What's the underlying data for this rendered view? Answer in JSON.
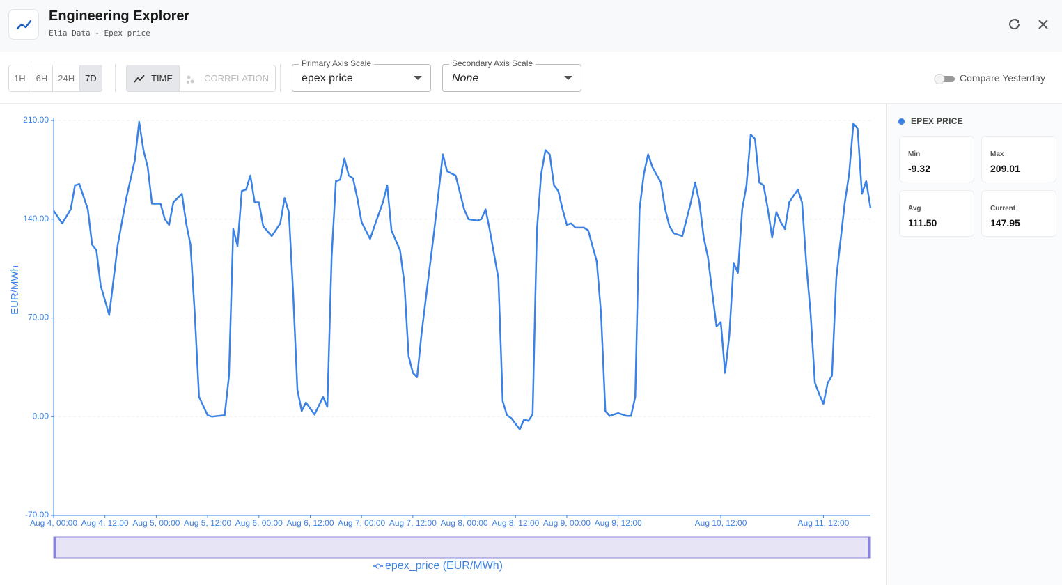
{
  "header": {
    "title": "Engineering Explorer",
    "subtitle": "Elia Data - Epex price"
  },
  "toolbar": {
    "ranges": [
      "1H",
      "6H",
      "24H",
      "7D"
    ],
    "active_range": "7D",
    "modes": [
      "TIME",
      "CORRELATION"
    ],
    "active_mode": "TIME",
    "primary_label": "Primary Axis Scale",
    "primary_value": "epex price",
    "secondary_label": "Secondary Axis Scale",
    "secondary_value": "None",
    "compare": "Compare Yesterday"
  },
  "stats": {
    "title": "EPEX PRICE",
    "items": [
      {
        "label": "Min",
        "value": "-9.32"
      },
      {
        "label": "Max",
        "value": "209.01"
      },
      {
        "label": "Avg",
        "value": "111.50"
      },
      {
        "label": "Current",
        "value": "147.95"
      }
    ]
  },
  "chart_data": {
    "type": "line",
    "ylabel": "EUR/MWh",
    "xlim": [
      "Aug 4, 00:00",
      "Aug 11, 23:00"
    ],
    "xticks": [
      "Aug 4, 00:00",
      "Aug 4, 12:00",
      "Aug 5, 00:00",
      "Aug 5, 12:00",
      "Aug 6, 00:00",
      "Aug 6, 12:00",
      "Aug 7, 00:00",
      "Aug 7, 12:00",
      "Aug 8, 00:00",
      "Aug 8, 12:00",
      "Aug 9, 00:00",
      "Aug 9, 12:00",
      "Aug 10, 12:00",
      "Aug 11, 12:00"
    ],
    "ylim": [
      -70,
      210
    ],
    "yticks": [
      {
        "value": -70,
        "label": "-70.00"
      },
      {
        "value": 0,
        "label": "0.00"
      },
      {
        "value": 70,
        "label": "70.00"
      },
      {
        "value": 140,
        "label": "140.00"
      },
      {
        "value": 210,
        "label": "210.00"
      }
    ],
    "grid": true,
    "x": [
      "Aug 4, 00:00",
      "Aug 4, 02:00",
      "Aug 4, 04:00",
      "Aug 4, 05:00",
      "Aug 4, 06:00",
      "Aug 4, 08:00",
      "Aug 4, 09:00",
      "Aug 4, 10:00",
      "Aug 4, 11:00",
      "Aug 4, 13:00",
      "Aug 4, 15:00",
      "Aug 4, 17:00",
      "Aug 4, 19:00",
      "Aug 4, 20:00",
      "Aug 4, 21:00",
      "Aug 4, 22:00",
      "Aug 4, 23:00",
      "Aug 5, 01:00",
      "Aug 5, 02:00",
      "Aug 5, 03:00",
      "Aug 5, 04:00",
      "Aug 5, 06:00",
      "Aug 5, 07:00",
      "Aug 5, 08:00",
      "Aug 5, 09:00",
      "Aug 5, 10:00",
      "Aug 5, 12:00",
      "Aug 5, 13:00",
      "Aug 5, 16:00",
      "Aug 5, 17:00",
      "Aug 5, 18:00",
      "Aug 5, 19:00",
      "Aug 5, 20:00",
      "Aug 5, 21:00",
      "Aug 5, 22:00",
      "Aug 5, 23:00",
      "Aug 6, 00:00",
      "Aug 6, 01:00",
      "Aug 6, 03:00",
      "Aug 6, 05:00",
      "Aug 6, 06:00",
      "Aug 6, 07:00",
      "Aug 6, 08:00",
      "Aug 6, 09:00",
      "Aug 6, 10:00",
      "Aug 6, 11:00",
      "Aug 6, 13:00",
      "Aug 6, 15:00",
      "Aug 6, 16:00",
      "Aug 6, 17:00",
      "Aug 6, 18:00",
      "Aug 6, 19:00",
      "Aug 6, 20:00",
      "Aug 6, 21:00",
      "Aug 6, 22:00",
      "Aug 6, 23:00",
      "Aug 7, 00:00",
      "Aug 7, 02:00",
      "Aug 7, 03:00",
      "Aug 7, 05:00",
      "Aug 7, 06:00",
      "Aug 7, 07:00",
      "Aug 7, 09:00",
      "Aug 7, 10:00",
      "Aug 7, 11:00",
      "Aug 7, 12:00",
      "Aug 7, 13:00",
      "Aug 7, 14:00",
      "Aug 7, 15:00",
      "Aug 7, 17:00",
      "Aug 7, 19:00",
      "Aug 7, 20:00",
      "Aug 7, 22:00",
      "Aug 8, 00:00",
      "Aug 8, 01:00",
      "Aug 8, 03:00",
      "Aug 8, 04:00",
      "Aug 8, 05:00",
      "Aug 8, 06:00",
      "Aug 8, 08:00",
      "Aug 8, 09:00",
      "Aug 8, 10:00",
      "Aug 8, 11:00",
      "Aug 8, 13:00",
      "Aug 8, 14:00",
      "Aug 8, 15:00",
      "Aug 8, 16:00",
      "Aug 8, 17:00",
      "Aug 8, 18:00",
      "Aug 8, 19:00",
      "Aug 8, 20:00",
      "Aug 8, 21:00",
      "Aug 8, 22:00",
      "Aug 8, 23:00",
      "Aug 9, 00:00",
      "Aug 9, 01:00",
      "Aug 9, 02:00",
      "Aug 9, 04:00",
      "Aug 9, 05:00",
      "Aug 9, 07:00",
      "Aug 9, 08:00",
      "Aug 9, 09:00",
      "Aug 9, 10:00",
      "Aug 9, 12:00",
      "Aug 9, 14:00",
      "Aug 9, 15:00",
      "Aug 9, 16:00",
      "Aug 9, 17:00",
      "Aug 9, 18:00",
      "Aug 9, 19:00",
      "Aug 9, 20:00",
      "Aug 9, 22:00",
      "Aug 9, 23:00",
      "Aug 10, 00:00",
      "Aug 10, 01:00",
      "Aug 10, 03:00",
      "Aug 10, 05:00",
      "Aug 10, 06:00",
      "Aug 10, 07:00",
      "Aug 10, 08:00",
      "Aug 10, 09:00",
      "Aug 10, 10:00",
      "Aug 10, 11:00",
      "Aug 10, 12:00",
      "Aug 10, 13:00",
      "Aug 10, 14:00",
      "Aug 10, 15:00",
      "Aug 10, 16:00",
      "Aug 10, 17:00",
      "Aug 10, 18:00",
      "Aug 10, 19:00",
      "Aug 10, 20:00",
      "Aug 10, 21:00",
      "Aug 10, 22:00",
      "Aug 10, 23:00",
      "Aug 11, 00:00",
      "Aug 11, 01:00",
      "Aug 11, 02:00",
      "Aug 11, 03:00",
      "Aug 11, 04:00",
      "Aug 11, 06:00",
      "Aug 11, 07:00",
      "Aug 11, 08:00",
      "Aug 11, 09:00",
      "Aug 11, 10:00",
      "Aug 11, 11:00",
      "Aug 11, 12:00",
      "Aug 11, 13:00",
      "Aug 11, 14:00",
      "Aug 11, 15:00",
      "Aug 11, 17:00",
      "Aug 11, 18:00",
      "Aug 11, 19:00",
      "Aug 11, 20:00",
      "Aug 11, 21:00",
      "Aug 11, 22:00",
      "Aug 11, 23:00"
    ],
    "series": [
      {
        "name": "epex_price (EUR/MWh)",
        "color": "#3b82e6",
        "values": [
          146,
          137,
          147,
          164,
          165,
          147,
          122,
          118,
          93,
          72,
          122,
          155,
          182,
          209,
          189,
          177,
          151,
          151,
          140,
          136,
          152,
          158,
          137,
          122,
          73,
          14,
          1,
          0,
          1,
          29,
          133,
          121,
          160,
          161,
          171,
          152,
          152,
          135,
          128,
          137,
          155,
          145,
          88,
          19,
          4,
          10,
          1.5,
          14,
          7,
          113,
          167,
          168,
          183,
          171,
          169,
          155,
          138,
          126,
          135,
          152,
          164,
          132,
          118,
          95,
          43,
          31,
          28,
          58,
          83,
          132,
          186,
          174,
          171,
          147,
          140,
          139,
          140,
          147,
          132,
          98,
          11,
          1,
          -1,
          -9,
          -2,
          -3,
          1.5,
          132,
          172,
          189,
          186,
          164,
          160,
          147,
          136,
          137,
          134,
          134,
          132,
          110,
          73,
          4,
          0.5,
          2.5,
          0.5,
          0.5,
          14,
          147,
          172,
          186,
          177,
          166,
          147,
          135,
          130,
          128,
          152,
          166,
          152,
          127,
          113,
          88,
          64,
          67,
          31,
          58,
          109,
          102,
          147,
          164,
          200,
          197,
          166,
          164,
          147,
          127,
          145,
          138,
          133,
          152,
          161,
          152,
          108,
          73,
          24,
          16,
          9,
          24,
          29,
          98,
          152,
          172,
          208,
          204,
          158,
          167,
          148
        ]
      }
    ]
  }
}
